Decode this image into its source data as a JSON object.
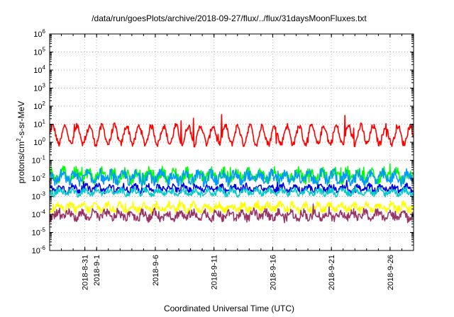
{
  "chart_data": {
    "type": "line",
    "title": "/data/run/goesPlots/archive/2018-09-27/flux/../flux/31daysMoonFluxes.txt",
    "xlabel": "Coordinated Universal Time (UTC)",
    "ylabel": "protons/cm2-s-sr-MeV",
    "yscale": "log",
    "ylim": [
      1e-06,
      1000000.0
    ],
    "xlim": [
      "2018-08-28",
      "2018-09-28"
    ],
    "grid": true,
    "legend": "none",
    "y_ticks": [
      "10-6",
      "10-5",
      "10-4",
      "10-3",
      "10-2",
      "10-1",
      "100",
      "101",
      "102",
      "103",
      "104",
      "105",
      "106"
    ],
    "x_ticks": [
      "2018-8-31",
      "2018-9-1",
      "2018-9-6",
      "2018-9-11",
      "2018-9-16",
      "2018-9-21",
      "2018-9-26"
    ],
    "series": [
      {
        "color": "#ff0000",
        "typical_min": 0.8,
        "typical_max": 8,
        "peak_max": 40
      },
      {
        "color": "#00ff00",
        "typical_min": 0.005,
        "typical_max": 0.04,
        "peak_max": 0.09
      },
      {
        "color": "#0099ff",
        "typical_min": 0.004,
        "typical_max": 0.03,
        "peak_max": 0.06
      },
      {
        "color": "#0000dd",
        "typical_min": 0.0015,
        "typical_max": 0.005,
        "peak_max": 0.008
      },
      {
        "color": "#00cccc",
        "typical_min": 0.001,
        "typical_max": 0.003,
        "peak_max": 0.004
      },
      {
        "color": "#ffff00",
        "typical_min": 0.00012,
        "typical_max": 0.0005,
        "peak_max": 0.0009
      },
      {
        "color": "#993366",
        "typical_min": 4e-05,
        "typical_max": 0.0002,
        "peak_max": 0.0004
      }
    ]
  }
}
